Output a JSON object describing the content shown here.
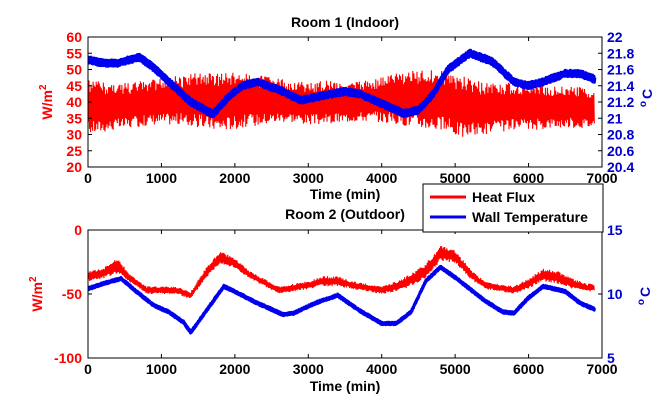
{
  "colors": {
    "left_axis": "#ff0000",
    "right_axis": "#0000cc",
    "heat_flux": "#ff0000",
    "wall_temp": "#0000ee"
  },
  "legend": {
    "heat_flux_label": "Heat Flux",
    "wall_temp_label": "Wall Temperature",
    "placement": "between panels, right"
  },
  "chart_data": [
    {
      "type": "line",
      "title": "Room 1 (Indoor)",
      "xlabel": "Time (min)",
      "ylabel_left": "W/m2",
      "ylabel_left_text": "W/m",
      "ylabel_left_sup": "2",
      "ylabel_right": "°C",
      "ylabel_right_deg": "o",
      "ylabel_right_text": "C",
      "xlim": [
        0,
        7000
      ],
      "ylim_left": [
        20,
        60
      ],
      "ylim_right": [
        20.4,
        22.0
      ],
      "xticks": [
        "0",
        "1000",
        "2000",
        "3000",
        "4000",
        "5000",
        "6000",
        "7000"
      ],
      "yticks_left": [
        "20",
        "25",
        "30",
        "35",
        "40",
        "45",
        "50",
        "55",
        "60"
      ],
      "yticks_right": [
        "20.4",
        "20.6",
        "20.8",
        "21",
        "21.2",
        "21.4",
        "21.6",
        "21.8",
        "22"
      ],
      "series": [
        {
          "name": "Heat Flux",
          "axis": "left",
          "noisy": true,
          "x": [
            0,
            300,
            600,
            900,
            1200,
            1500,
            1800,
            2100,
            2400,
            2700,
            3000,
            3300,
            3600,
            3900,
            4200,
            4500,
            4800,
            5100,
            5400,
            5700,
            6000,
            6300,
            6600,
            6900
          ],
          "low": [
            30,
            31,
            32,
            33,
            33,
            32,
            31,
            32,
            33,
            34,
            33,
            33,
            34,
            34,
            33,
            32,
            31,
            29,
            30,
            31,
            31,
            32,
            32,
            32
          ],
          "high": [
            47,
            46,
            46,
            47,
            48,
            49,
            49,
            49,
            48,
            47,
            46,
            47,
            46,
            47,
            49,
            50,
            50,
            48,
            46,
            46,
            46,
            45,
            45,
            44
          ]
        },
        {
          "name": "Wall Temperature",
          "axis": "right",
          "noisy": false,
          "band": 0.04,
          "x": [
            0,
            200,
            400,
            700,
            900,
            1100,
            1400,
            1700,
            1900,
            2100,
            2300,
            2600,
            2900,
            3200,
            3500,
            3700,
            4000,
            4300,
            4500,
            4700,
            4900,
            5200,
            5500,
            5800,
            6000,
            6200,
            6500,
            6700,
            6900
          ],
          "y": [
            21.72,
            21.68,
            21.68,
            21.75,
            21.62,
            21.45,
            21.2,
            21.05,
            21.25,
            21.4,
            21.45,
            21.35,
            21.22,
            21.28,
            21.33,
            21.3,
            21.18,
            21.06,
            21.1,
            21.3,
            21.6,
            21.8,
            21.7,
            21.45,
            21.4,
            21.45,
            21.55,
            21.55,
            21.48
          ]
        }
      ]
    },
    {
      "type": "line",
      "title": "Room 2 (Outdoor)",
      "xlabel": "Time (min)",
      "ylabel_left": "W/m2",
      "ylabel_left_text": "W/m",
      "ylabel_left_sup": "2",
      "ylabel_right": "°C",
      "ylabel_right_deg": "o",
      "ylabel_right_text": "C",
      "xlim": [
        0,
        7000
      ],
      "ylim_left": [
        -100,
        0
      ],
      "ylim_right": [
        5,
        15
      ],
      "xticks": [
        "0",
        "1000",
        "2000",
        "3000",
        "4000",
        "5000",
        "6000",
        "7000"
      ],
      "yticks_left": [
        "-100",
        "-50",
        "0"
      ],
      "yticks_right": [
        "5",
        "10",
        "15"
      ],
      "series": [
        {
          "name": "Heat Flux",
          "axis": "left",
          "noisy": true,
          "x": [
            0,
            200,
            400,
            600,
            800,
            1000,
            1200,
            1400,
            1600,
            1800,
            2000,
            2200,
            2400,
            2600,
            2800,
            3000,
            3200,
            3400,
            3600,
            3800,
            4000,
            4200,
            4400,
            4600,
            4800,
            5000,
            5200,
            5400,
            5600,
            5800,
            6000,
            6200,
            6400,
            6600,
            6800,
            6900
          ],
          "low": [
            -40,
            -38,
            -34,
            -42,
            -50,
            -50,
            -50,
            -54,
            -38,
            -26,
            -30,
            -38,
            -44,
            -50,
            -48,
            -46,
            -44,
            -44,
            -46,
            -48,
            -50,
            -48,
            -44,
            -38,
            -24,
            -26,
            -38,
            -46,
            -48,
            -50,
            -46,
            -40,
            -42,
            -46,
            -48,
            -48
          ],
          "high": [
            -32,
            -30,
            -22,
            -36,
            -44,
            -44,
            -44,
            -48,
            -30,
            -16,
            -22,
            -32,
            -38,
            -44,
            -42,
            -40,
            -36,
            -36,
            -40,
            -42,
            -44,
            -40,
            -34,
            -26,
            -12,
            -16,
            -30,
            -40,
            -42,
            -44,
            -38,
            -30,
            -32,
            -38,
            -42,
            -42
          ]
        },
        {
          "name": "Wall Temperature",
          "axis": "right",
          "noisy": false,
          "band": 0.12,
          "x": [
            0,
            200,
            450,
            700,
            900,
            1100,
            1300,
            1400,
            1600,
            1850,
            2100,
            2300,
            2500,
            2650,
            2800,
            3100,
            3400,
            3700,
            4000,
            4200,
            4400,
            4600,
            4800,
            5000,
            5200,
            5400,
            5650,
            5800,
            6000,
            6200,
            6500,
            6700,
            6900
          ],
          "y": [
            10.4,
            10.8,
            11.2,
            10.0,
            9.1,
            8.6,
            7.8,
            7.0,
            8.6,
            10.6,
            9.9,
            9.3,
            8.8,
            8.4,
            8.5,
            9.3,
            9.9,
            8.7,
            7.7,
            7.7,
            8.6,
            11.0,
            12.1,
            11.3,
            10.4,
            9.5,
            8.6,
            8.5,
            9.7,
            10.6,
            10.2,
            9.3,
            8.8
          ]
        }
      ]
    }
  ]
}
